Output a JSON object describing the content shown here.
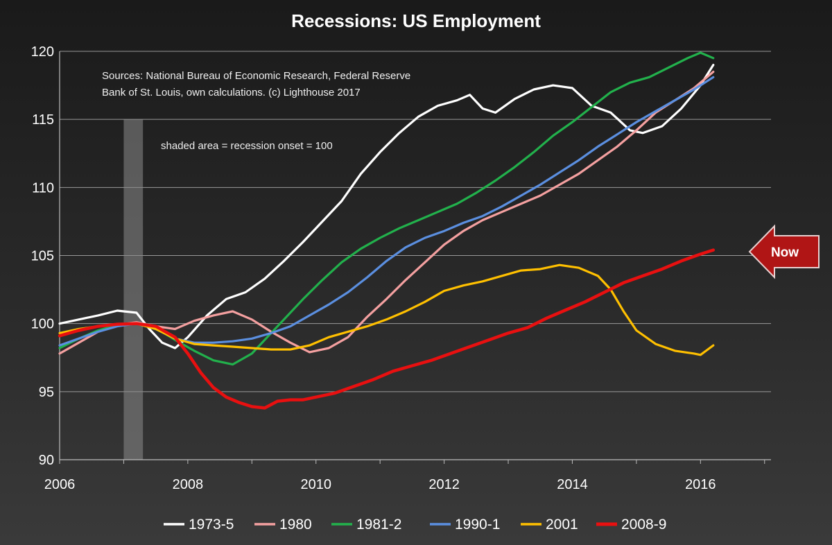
{
  "chart_data": {
    "type": "line",
    "title": "Recessions: US Employment",
    "annotations": {
      "sources_line1": "Sources: National Bureau of Economic Research, Federal Reserve",
      "sources_line2": "Bank of St. Louis, own calculations. (c) Lighthouse 2017",
      "shaded_note": "shaded area = recession onset = 100",
      "now_label": "Now"
    },
    "shaded_region": {
      "x": [
        2007.0,
        2007.3
      ],
      "y_top": 115
    },
    "xlim": [
      2006,
      2017.1
    ],
    "ylim": [
      90,
      120
    ],
    "x_ticks": [
      "2006",
      "2008",
      "2010",
      "2012",
      "2014",
      "2016"
    ],
    "y_ticks": [
      "90",
      "95",
      "100",
      "105",
      "110",
      "115",
      "120"
    ],
    "grid": "horizontal",
    "legend_position": "bottom",
    "series": [
      {
        "name": "1973-5",
        "color": "#ffffff",
        "points": [
          [
            2006.0,
            100.0
          ],
          [
            2006.3,
            100.3
          ],
          [
            2006.6,
            100.6
          ],
          [
            2006.9,
            100.95
          ],
          [
            2007.2,
            100.8
          ],
          [
            2007.4,
            99.6
          ],
          [
            2007.6,
            98.6
          ],
          [
            2007.8,
            98.2
          ],
          [
            2008.0,
            99.0
          ],
          [
            2008.3,
            100.6
          ],
          [
            2008.6,
            101.8
          ],
          [
            2008.9,
            102.3
          ],
          [
            2009.2,
            103.3
          ],
          [
            2009.5,
            104.6
          ],
          [
            2009.8,
            106.0
          ],
          [
            2010.1,
            107.5
          ],
          [
            2010.4,
            109.0
          ],
          [
            2010.7,
            111.0
          ],
          [
            2011.0,
            112.6
          ],
          [
            2011.3,
            114.0
          ],
          [
            2011.6,
            115.2
          ],
          [
            2011.9,
            116.0
          ],
          [
            2012.2,
            116.4
          ],
          [
            2012.4,
            116.8
          ],
          [
            2012.6,
            115.8
          ],
          [
            2012.8,
            115.5
          ],
          [
            2013.1,
            116.5
          ],
          [
            2013.4,
            117.2
          ],
          [
            2013.7,
            117.5
          ],
          [
            2014.0,
            117.3
          ],
          [
            2014.3,
            116.0
          ],
          [
            2014.6,
            115.5
          ],
          [
            2014.9,
            114.2
          ],
          [
            2015.1,
            114.0
          ],
          [
            2015.4,
            114.5
          ],
          [
            2015.7,
            115.8
          ],
          [
            2016.0,
            117.5
          ],
          [
            2016.2,
            119.0
          ]
        ]
      },
      {
        "name": "1980",
        "color": "#f4a0a0",
        "points": [
          [
            2006.0,
            97.8
          ],
          [
            2006.3,
            98.6
          ],
          [
            2006.6,
            99.4
          ],
          [
            2006.9,
            99.9
          ],
          [
            2007.2,
            100.1
          ],
          [
            2007.5,
            99.8
          ],
          [
            2007.8,
            99.6
          ],
          [
            2008.1,
            100.2
          ],
          [
            2008.4,
            100.6
          ],
          [
            2008.7,
            100.9
          ],
          [
            2009.0,
            100.3
          ],
          [
            2009.3,
            99.4
          ],
          [
            2009.6,
            98.6
          ],
          [
            2009.9,
            97.9
          ],
          [
            2010.2,
            98.2
          ],
          [
            2010.5,
            99.0
          ],
          [
            2010.8,
            100.5
          ],
          [
            2011.1,
            101.8
          ],
          [
            2011.4,
            103.2
          ],
          [
            2011.7,
            104.5
          ],
          [
            2012.0,
            105.8
          ],
          [
            2012.3,
            106.8
          ],
          [
            2012.6,
            107.6
          ],
          [
            2012.9,
            108.2
          ],
          [
            2013.2,
            108.8
          ],
          [
            2013.5,
            109.4
          ],
          [
            2013.8,
            110.2
          ],
          [
            2014.1,
            111.0
          ],
          [
            2014.4,
            112.0
          ],
          [
            2014.7,
            113.0
          ],
          [
            2015.0,
            114.2
          ],
          [
            2015.3,
            115.5
          ],
          [
            2015.6,
            116.4
          ],
          [
            2015.9,
            117.3
          ],
          [
            2016.2,
            118.5
          ]
        ]
      },
      {
        "name": "1981-2",
        "color": "#22b14c",
        "points": [
          [
            2006.0,
            98.2
          ],
          [
            2006.3,
            98.9
          ],
          [
            2006.6,
            99.5
          ],
          [
            2006.9,
            99.9
          ],
          [
            2007.2,
            100.0
          ],
          [
            2007.5,
            99.7
          ],
          [
            2007.8,
            98.8
          ],
          [
            2008.1,
            98.0
          ],
          [
            2008.4,
            97.3
          ],
          [
            2008.7,
            97.0
          ],
          [
            2009.0,
            97.8
          ],
          [
            2009.2,
            98.8
          ],
          [
            2009.5,
            100.3
          ],
          [
            2009.8,
            101.8
          ],
          [
            2010.1,
            103.2
          ],
          [
            2010.4,
            104.5
          ],
          [
            2010.7,
            105.5
          ],
          [
            2011.0,
            106.3
          ],
          [
            2011.3,
            107.0
          ],
          [
            2011.6,
            107.6
          ],
          [
            2011.9,
            108.2
          ],
          [
            2012.2,
            108.8
          ],
          [
            2012.5,
            109.6
          ],
          [
            2012.8,
            110.5
          ],
          [
            2013.1,
            111.5
          ],
          [
            2013.4,
            112.6
          ],
          [
            2013.7,
            113.8
          ],
          [
            2014.0,
            114.8
          ],
          [
            2014.3,
            115.9
          ],
          [
            2014.6,
            117.0
          ],
          [
            2014.9,
            117.7
          ],
          [
            2015.2,
            118.1
          ],
          [
            2015.5,
            118.8
          ],
          [
            2015.8,
            119.5
          ],
          [
            2016.0,
            119.9
          ],
          [
            2016.2,
            119.5
          ]
        ]
      },
      {
        "name": "1990-1",
        "color": "#5b8fe0",
        "points": [
          [
            2006.0,
            98.4
          ],
          [
            2006.3,
            98.9
          ],
          [
            2006.6,
            99.4
          ],
          [
            2006.9,
            99.8
          ],
          [
            2007.2,
            100.0
          ],
          [
            2007.5,
            99.6
          ],
          [
            2007.8,
            98.9
          ],
          [
            2008.1,
            98.6
          ],
          [
            2008.4,
            98.6
          ],
          [
            2008.7,
            98.7
          ],
          [
            2009.0,
            98.9
          ],
          [
            2009.3,
            99.3
          ],
          [
            2009.6,
            99.8
          ],
          [
            2009.9,
            100.6
          ],
          [
            2010.2,
            101.4
          ],
          [
            2010.5,
            102.3
          ],
          [
            2010.8,
            103.4
          ],
          [
            2011.1,
            104.6
          ],
          [
            2011.4,
            105.6
          ],
          [
            2011.7,
            106.3
          ],
          [
            2012.0,
            106.8
          ],
          [
            2012.3,
            107.4
          ],
          [
            2012.6,
            107.9
          ],
          [
            2012.9,
            108.6
          ],
          [
            2013.2,
            109.4
          ],
          [
            2013.5,
            110.2
          ],
          [
            2013.8,
            111.1
          ],
          [
            2014.1,
            112.0
          ],
          [
            2014.4,
            113.0
          ],
          [
            2014.7,
            113.9
          ],
          [
            2015.0,
            114.8
          ],
          [
            2015.3,
            115.6
          ],
          [
            2015.6,
            116.4
          ],
          [
            2015.9,
            117.2
          ],
          [
            2016.2,
            118.1
          ]
        ]
      },
      {
        "name": "2001",
        "color": "#ffc000",
        "points": [
          [
            2006.0,
            99.3
          ],
          [
            2006.3,
            99.6
          ],
          [
            2006.6,
            99.8
          ],
          [
            2006.9,
            99.95
          ],
          [
            2007.2,
            100.0
          ],
          [
            2007.5,
            99.6
          ],
          [
            2007.8,
            98.9
          ],
          [
            2008.1,
            98.5
          ],
          [
            2008.4,
            98.4
          ],
          [
            2008.7,
            98.3
          ],
          [
            2009.0,
            98.2
          ],
          [
            2009.3,
            98.1
          ],
          [
            2009.6,
            98.1
          ],
          [
            2009.9,
            98.4
          ],
          [
            2010.2,
            99.0
          ],
          [
            2010.5,
            99.4
          ],
          [
            2010.8,
            99.8
          ],
          [
            2011.1,
            100.3
          ],
          [
            2011.4,
            100.9
          ],
          [
            2011.7,
            101.6
          ],
          [
            2012.0,
            102.4
          ],
          [
            2012.3,
            102.8
          ],
          [
            2012.6,
            103.1
          ],
          [
            2012.9,
            103.5
          ],
          [
            2013.2,
            103.9
          ],
          [
            2013.5,
            104.0
          ],
          [
            2013.8,
            104.3
          ],
          [
            2014.1,
            104.1
          ],
          [
            2014.4,
            103.5
          ],
          [
            2014.6,
            102.5
          ],
          [
            2014.8,
            100.9
          ],
          [
            2015.0,
            99.5
          ],
          [
            2015.3,
            98.5
          ],
          [
            2015.6,
            98.0
          ],
          [
            2015.9,
            97.8
          ],
          [
            2016.0,
            97.7
          ],
          [
            2016.2,
            98.4
          ]
        ]
      },
      {
        "name": "2008-9",
        "color": "#e81010",
        "points": [
          [
            2006.0,
            99.1
          ],
          [
            2006.3,
            99.5
          ],
          [
            2006.6,
            99.8
          ],
          [
            2006.9,
            99.95
          ],
          [
            2007.2,
            100.0
          ],
          [
            2007.5,
            99.8
          ],
          [
            2007.8,
            99.0
          ],
          [
            2008.0,
            97.8
          ],
          [
            2008.2,
            96.4
          ],
          [
            2008.4,
            95.3
          ],
          [
            2008.6,
            94.6
          ],
          [
            2008.8,
            94.2
          ],
          [
            2009.0,
            93.9
          ],
          [
            2009.2,
            93.8
          ],
          [
            2009.4,
            94.3
          ],
          [
            2009.6,
            94.4
          ],
          [
            2009.8,
            94.4
          ],
          [
            2010.0,
            94.6
          ],
          [
            2010.3,
            94.9
          ],
          [
            2010.6,
            95.4
          ],
          [
            2010.9,
            95.9
          ],
          [
            2011.2,
            96.5
          ],
          [
            2011.5,
            96.9
          ],
          [
            2011.8,
            97.3
          ],
          [
            2012.1,
            97.8
          ],
          [
            2012.4,
            98.3
          ],
          [
            2012.7,
            98.8
          ],
          [
            2013.0,
            99.3
          ],
          [
            2013.3,
            99.7
          ],
          [
            2013.6,
            100.4
          ],
          [
            2013.9,
            101.0
          ],
          [
            2014.2,
            101.6
          ],
          [
            2014.5,
            102.3
          ],
          [
            2014.8,
            103.0
          ],
          [
            2015.1,
            103.5
          ],
          [
            2015.4,
            104.0
          ],
          [
            2015.7,
            104.6
          ],
          [
            2016.0,
            105.1
          ],
          [
            2016.2,
            105.4
          ]
        ]
      }
    ]
  }
}
